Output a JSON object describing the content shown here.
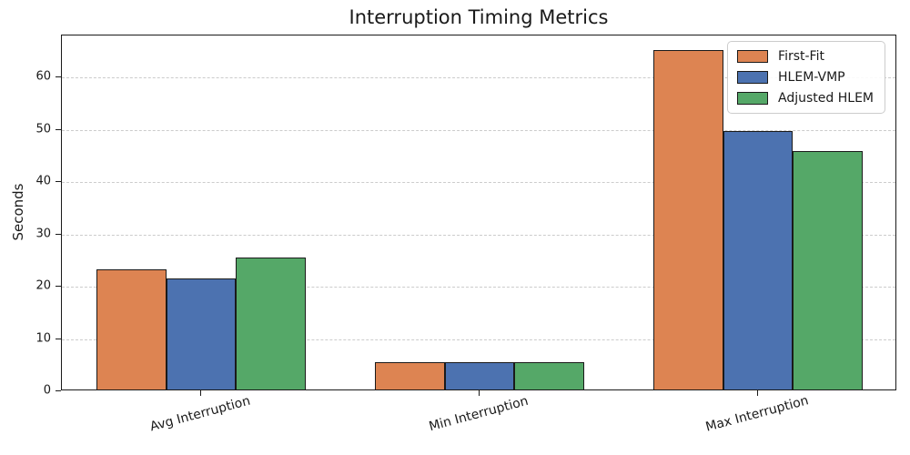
{
  "chart_data": {
    "type": "bar",
    "title": "Interruption Timing Metrics",
    "ylabel": "Seconds",
    "xlabel": "",
    "categories": [
      "Avg Interruption",
      "Min Interruption",
      "Max Interruption"
    ],
    "series": [
      {
        "name": "First-Fit",
        "color": "#dd8452",
        "values": [
          23.0,
          5.2,
          64.9
        ]
      },
      {
        "name": "HLEM-VMP",
        "color": "#4c72b0",
        "values": [
          21.2,
          5.2,
          49.4
        ]
      },
      {
        "name": "Adjusted HLEM",
        "color": "#55a868",
        "values": [
          25.2,
          5.2,
          45.6
        ]
      }
    ],
    "ylim": [
      0,
      68
    ],
    "yticks": [
      0,
      10,
      20,
      30,
      40,
      50,
      60
    ],
    "grid": {
      "axis": "y",
      "style": "dashed",
      "color": "#cccccc"
    },
    "bar_edge_color": "#1a1a1a",
    "x_tick_rotation_deg": 15,
    "legend": {
      "position": "upper-right"
    }
  }
}
